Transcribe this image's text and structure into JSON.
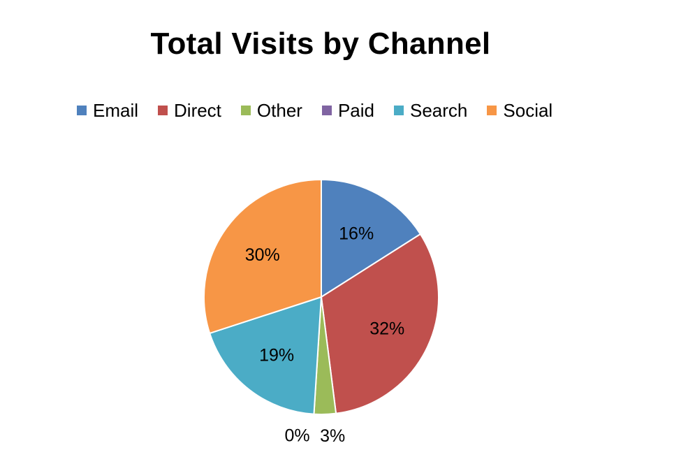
{
  "chart_data": {
    "type": "pie",
    "title": "Total Visits by Channel",
    "legend_position": "top",
    "series": [
      {
        "name": "Email",
        "value": 16,
        "label": "16%",
        "color": "#4f81bd"
      },
      {
        "name": "Direct",
        "value": 32,
        "label": "32%",
        "color": "#c0504d"
      },
      {
        "name": "Other",
        "value": 3,
        "label": "3%",
        "color": "#9bbb59"
      },
      {
        "name": "Paid",
        "value": 0,
        "label": "0%",
        "color": "#8064a2"
      },
      {
        "name": "Search",
        "value": 19,
        "label": "19%",
        "color": "#4bacc6"
      },
      {
        "name": "Social",
        "value": 30,
        "label": "30%",
        "color": "#f79646"
      }
    ]
  }
}
